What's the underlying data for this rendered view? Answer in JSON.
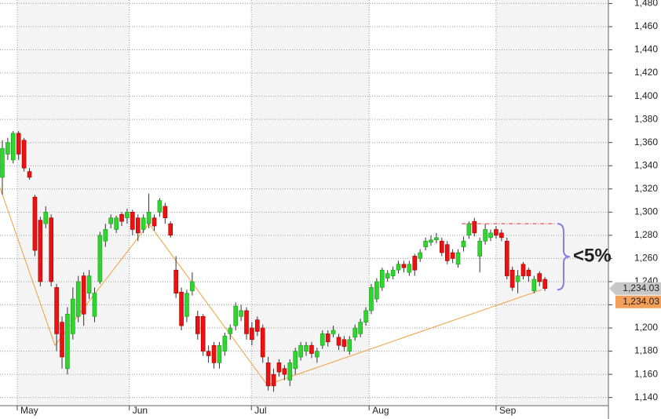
{
  "chart_data": {
    "type": "candlestick",
    "x": [
      0,
      1,
      2,
      3,
      4,
      5,
      6,
      7,
      8,
      9,
      10,
      11,
      12,
      13,
      14,
      15,
      16,
      17,
      18,
      19,
      20,
      21,
      22,
      23,
      24,
      25,
      26,
      27,
      28,
      29,
      30,
      31,
      32,
      33,
      34,
      35,
      36,
      37,
      38,
      39,
      40,
      41,
      42,
      43,
      44,
      45,
      46,
      47,
      48,
      49,
      50,
      51,
      52,
      53,
      54,
      55,
      56,
      57,
      58,
      59,
      60,
      61,
      62,
      63,
      64,
      65,
      66,
      67,
      68,
      69,
      70,
      71,
      72,
      73,
      74,
      75,
      76,
      77,
      78,
      79,
      80,
      81,
      82,
      83,
      84,
      85,
      86,
      87,
      88,
      89,
      90,
      91,
      92,
      93,
      94,
      95,
      96,
      97,
      98,
      99,
      100
    ],
    "open": [
      1330,
      1350,
      1345,
      1368,
      1362,
      1335,
      1313,
      1293,
      1290,
      1295,
      1235,
      1205,
      1165,
      1195,
      1210,
      1245,
      1230,
      1210,
      1240,
      1275,
      1290,
      1285,
      1298,
      1295,
      1300,
      1295,
      1285,
      1290,
      1295,
      1300,
      1305,
      1290,
      1250,
      1231,
      1210,
      1232,
      1210,
      1210,
      1180,
      1185,
      1170,
      1180,
      1195,
      1202,
      1210,
      1215,
      1200,
      1207,
      1200,
      1170,
      1160,
      1170,
      1165,
      1155,
      1165,
      1175,
      1180,
      1185,
      1175,
      1185,
      1195,
      1195,
      1192,
      1190,
      1180,
      1192,
      1195,
      1205,
      1215,
      1225,
      1235,
      1243,
      1245,
      1250,
      1255,
      1248,
      1262,
      1260,
      1270,
      1274,
      1276,
      1275,
      1272,
      1265,
      1255,
      1270,
      1280,
      1292,
      1262,
      1275,
      1278,
      1285,
      1282,
      1275,
      1250,
      1240,
      1255,
      1250,
      1232,
      1247,
      1242
    ],
    "high": [
      1362,
      1364,
      1370,
      1370,
      1364,
      1338,
      1315,
      1296,
      1305,
      1298,
      1238,
      1210,
      1218,
      1235,
      1245,
      1248,
      1250,
      1235,
      1283,
      1290,
      1298,
      1297,
      1300,
      1303,
      1302,
      1298,
      1298,
      1316,
      1298,
      1312,
      1308,
      1292,
      1262,
      1235,
      1233,
      1248,
      1215,
      1212,
      1185,
      1188,
      1188,
      1196,
      1203,
      1222,
      1220,
      1218,
      1205,
      1210,
      1203,
      1175,
      1165,
      1173,
      1168,
      1173,
      1183,
      1188,
      1188,
      1188,
      1183,
      1198,
      1198,
      1202,
      1195,
      1193,
      1193,
      1203,
      1208,
      1218,
      1238,
      1243,
      1252,
      1250,
      1253,
      1258,
      1258,
      1258,
      1264,
      1268,
      1278,
      1280,
      1282,
      1278,
      1275,
      1268,
      1268,
      1279,
      1292,
      1295,
      1278,
      1290,
      1285,
      1288,
      1285,
      1278,
      1253,
      1250,
      1257,
      1252,
      1245,
      1249,
      1244
    ],
    "low": [
      1315,
      1345,
      1342,
      1345,
      1335,
      1328,
      1262,
      1236,
      1286,
      1236,
      1180,
      1165,
      1160,
      1190,
      1205,
      1202,
      1225,
      1205,
      1238,
      1270,
      1286,
      1282,
      1288,
      1290,
      1280,
      1275,
      1282,
      1286,
      1284,
      1296,
      1290,
      1278,
      1226,
      1198,
      1205,
      1228,
      1190,
      1176,
      1170,
      1165,
      1165,
      1176,
      1190,
      1198,
      1206,
      1190,
      1185,
      1193,
      1170,
      1146,
      1145,
      1158,
      1155,
      1150,
      1160,
      1172,
      1176,
      1174,
      1170,
      1182,
      1184,
      1192,
      1181,
      1180,
      1177,
      1189,
      1192,
      1202,
      1212,
      1222,
      1232,
      1240,
      1242,
      1247,
      1248,
      1245,
      1245,
      1257,
      1267,
      1271,
      1273,
      1262,
      1255,
      1256,
      1252,
      1266,
      1277,
      1279,
      1248,
      1272,
      1275,
      1277,
      1275,
      1242,
      1232,
      1230,
      1242,
      1240,
      1230,
      1236,
      1232
    ],
    "close": [
      1355,
      1360,
      1368,
      1350,
      1338,
      1330,
      1267,
      1240,
      1300,
      1240,
      1195,
      1175,
      1212,
      1225,
      1240,
      1212,
      1245,
      1230,
      1280,
      1285,
      1295,
      1295,
      1292,
      1300,
      1285,
      1282,
      1295,
      1300,
      1288,
      1310,
      1295,
      1280,
      1230,
      1202,
      1230,
      1240,
      1195,
      1180,
      1176,
      1170,
      1185,
      1193,
      1200,
      1219,
      1215,
      1195,
      1190,
      1197,
      1175,
      1150,
      1150,
      1162,
      1160,
      1170,
      1180,
      1185,
      1185,
      1178,
      1180,
      1195,
      1188,
      1198,
      1185,
      1184,
      1190,
      1200,
      1205,
      1215,
      1235,
      1240,
      1250,
      1247,
      1250,
      1255,
      1252,
      1255,
      1250,
      1265,
      1275,
      1276,
      1278,
      1265,
      1258,
      1260,
      1265,
      1275,
      1290,
      1282,
      1275,
      1285,
      1282,
      1280,
      1278,
      1245,
      1235,
      1245,
      1245,
      1245,
      1242,
      1240,
      1234.03
    ],
    "up_color": "#2fd62f",
    "down_color": "#ee1111",
    "xlim": [
      -0.43,
      111.7
    ],
    "ylim": [
      1133,
      1483
    ],
    "xticks": [
      {
        "value": 2.75,
        "label": "May"
      },
      {
        "value": 23.4,
        "label": "Jun"
      },
      {
        "value": 45.9,
        "label": "Jul"
      },
      {
        "value": 67.6,
        "label": "Aug"
      },
      {
        "value": 91,
        "label": "Sep"
      }
    ],
    "yticks": [
      {
        "value": 1140,
        "label": "1,140"
      },
      {
        "value": 1160,
        "label": "1,160"
      },
      {
        "value": 1180,
        "label": "1,180"
      },
      {
        "value": 1200,
        "label": "1,200"
      },
      {
        "value": 1220,
        "label": "1,220"
      },
      {
        "value": 1240,
        "label": "1,240"
      },
      {
        "value": 1260,
        "label": "1,260"
      },
      {
        "value": 1280,
        "label": "1,280"
      },
      {
        "value": 1300,
        "label": "1,300"
      },
      {
        "value": 1320,
        "label": "1,320"
      },
      {
        "value": 1340,
        "label": "1,340"
      },
      {
        "value": 1360,
        "label": "1,360"
      },
      {
        "value": 1380,
        "label": "1,380"
      },
      {
        "value": 1400,
        "label": "1,400"
      },
      {
        "value": 1420,
        "label": "1,420"
      },
      {
        "value": 1440,
        "label": "1,440"
      },
      {
        "value": 1460,
        "label": "1,460"
      },
      {
        "value": 1480,
        "label": "1,480"
      }
    ],
    "grid": true,
    "trend_line": {
      "x": [
        -0.43,
        9.7,
        27,
        48.8,
        99.4
      ],
      "y": [
        1321,
        1185,
        1290,
        1151,
        1233
      ],
      "color": "#f0a040"
    },
    "resistance": {
      "x": [
        84.7,
        102
      ],
      "value": 1290,
      "color": "#e03030"
    },
    "annotation": {
      "text": "<5%",
      "from": 1290,
      "to": 1233,
      "color": "#e020e0",
      "brace_color": "#8080e0"
    },
    "price_markers": [
      {
        "value": 1234.03,
        "label": "1,234.03",
        "color": "#c8c8c8"
      },
      {
        "value": 1234.03,
        "label": "1,234.03",
        "color": "#f5a05a"
      }
    ]
  }
}
